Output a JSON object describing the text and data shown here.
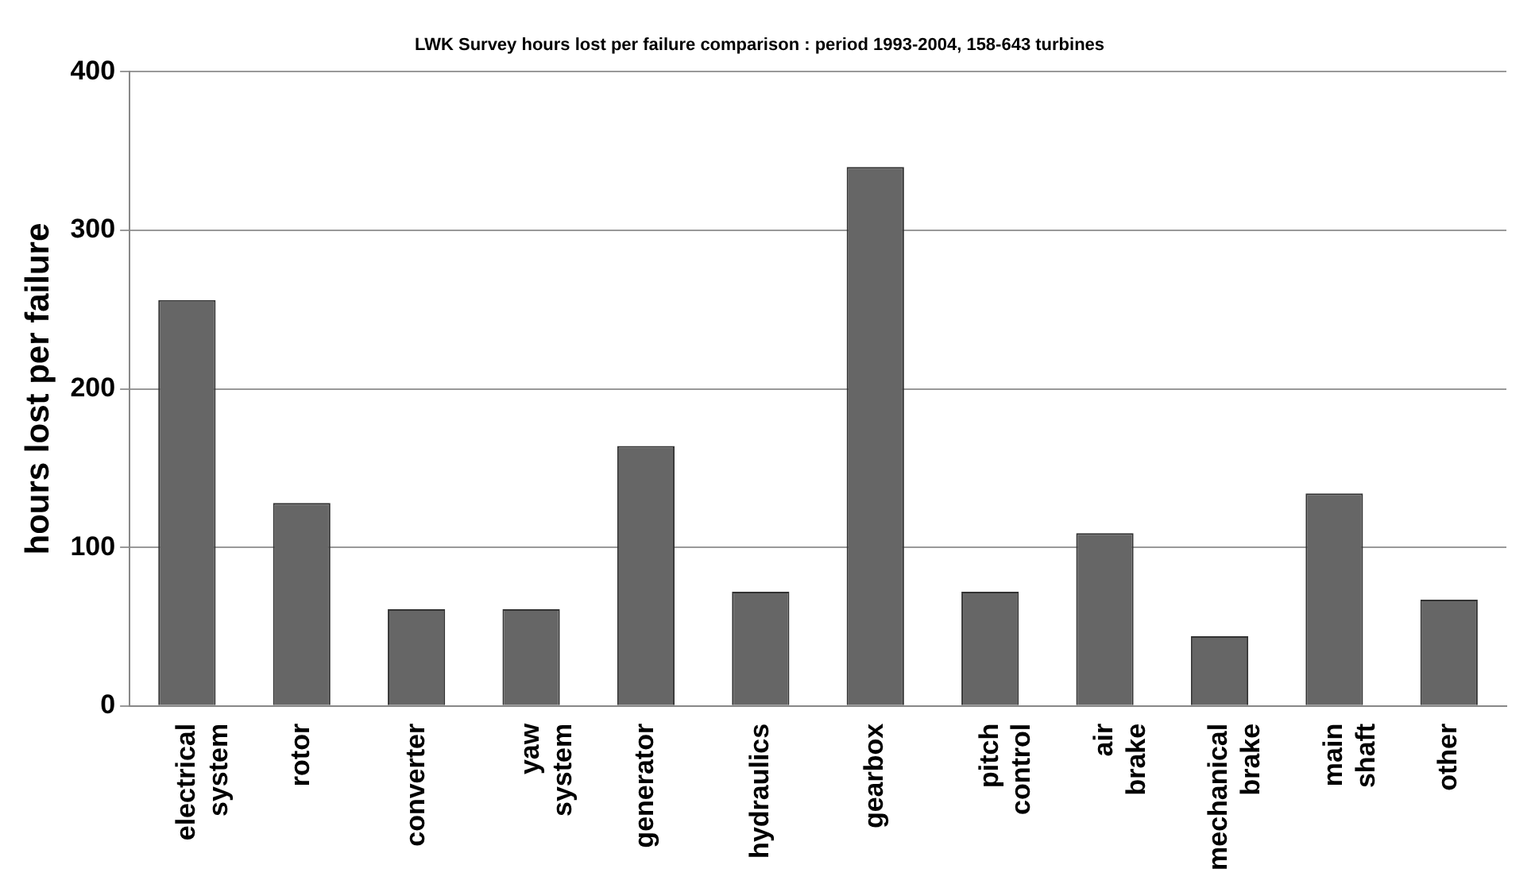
{
  "chart_data": {
    "type": "bar",
    "title": "LWK Survey hours lost per failure comparison : period 1993-2004, 158-643 turbines",
    "ylabel": "hours lost per failure",
    "categories": [
      "electrical system",
      "rotor",
      "converter",
      "yaw system",
      "generator",
      "hydraulics",
      "gearbox",
      "pitch control",
      "air brake",
      "mechanical brake",
      "main shaft",
      "other"
    ],
    "values": [
      256,
      128,
      61,
      61,
      164,
      72,
      340,
      72,
      109,
      44,
      134,
      67
    ],
    "color": "#666666",
    "ylim": [
      0,
      400
    ],
    "yticks": [
      0,
      100,
      200,
      300,
      400
    ],
    "grid": "y",
    "legend": false
  }
}
